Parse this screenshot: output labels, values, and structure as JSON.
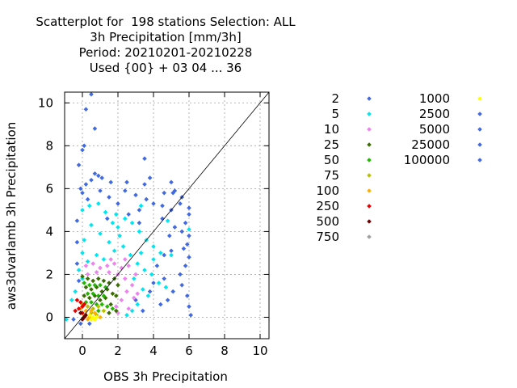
{
  "chart": {
    "title_lines": [
      "Scatterplot for  198 stations Selection: ALL",
      "3h Precipitation [mm/3h]",
      "Period: 20210201-20210228",
      "Used {00} + 03 04 ... 36"
    ],
    "xlabel": "OBS 3h Precipitation",
    "ylabel": "aws3dvarlamb 3h Precipitation"
  },
  "chart_data": {
    "type": "scatter",
    "title": "Scatterplot for  198 stations Selection: ALL / 3h Precipitation [mm/3h] / Period: 20210201-20210228 / Used {00} + 03 04 ... 36",
    "xlabel": "OBS 3h Precipitation",
    "ylabel": "aws3dvarlamb 3h Precipitation",
    "xlim": [
      -1,
      10.5
    ],
    "ylim": [
      -1,
      10.5
    ],
    "xticks": [
      0,
      2,
      4,
      6,
      8,
      10
    ],
    "yticks": [
      0,
      2,
      4,
      6,
      8,
      10
    ],
    "grid": true,
    "diagonal_line": true,
    "legend_position": "right",
    "legend": [
      {
        "label": "2",
        "color": "#4169e1"
      },
      {
        "label": "5",
        "color": "#00e5ee"
      },
      {
        "label": "10",
        "color": "#ee82ee"
      },
      {
        "label": "25",
        "color": "#3a6e00"
      },
      {
        "label": "50",
        "color": "#22b800"
      },
      {
        "label": "75",
        "color": "#b8c000"
      },
      {
        "label": "100",
        "color": "#ffb000"
      },
      {
        "label": "250",
        "color": "#e80000"
      },
      {
        "label": "500",
        "color": "#700000"
      },
      {
        "label": "750",
        "color": "#a0a0a0"
      },
      {
        "label": "1000",
        "color": "#ffff00"
      },
      {
        "label": "2500",
        "color": "#4169e1"
      },
      {
        "label": "5000",
        "color": "#4169e1"
      },
      {
        "label": "25000",
        "color": "#4169e1"
      },
      {
        "label": "100000",
        "color": "#4169e1"
      }
    ],
    "series": [
      {
        "name": "2",
        "color": "#4169e1",
        "points": [
          [
            0.5,
            10.4
          ],
          [
            0.2,
            9.7
          ],
          [
            0.7,
            8.8
          ],
          [
            0,
            7.8
          ],
          [
            0.1,
            8.0
          ],
          [
            -0.2,
            7.1
          ],
          [
            3.5,
            7.4
          ],
          [
            0.7,
            6.7
          ],
          [
            0.9,
            6.6
          ],
          [
            1.1,
            6.5
          ],
          [
            0.5,
            6.4
          ],
          [
            0.2,
            6.2
          ],
          [
            1.6,
            6.3
          ],
          [
            2.5,
            6.3
          ],
          [
            3.5,
            6.2
          ],
          [
            3.8,
            6.5
          ],
          [
            5.0,
            6.3
          ],
          [
            4.6,
            5.8
          ],
          [
            5.1,
            5.8
          ],
          [
            5.6,
            5.6
          ],
          [
            5.2,
            5.9
          ],
          [
            -0.1,
            6.0
          ],
          [
            0,
            5.8
          ],
          [
            0.3,
            5.5
          ],
          [
            1.0,
            5.9
          ],
          [
            2.4,
            5.9
          ],
          [
            3.0,
            5.7
          ],
          [
            3.6,
            5.5
          ],
          [
            4.0,
            5.3
          ],
          [
            4.5,
            5.2
          ],
          [
            5.0,
            5.0
          ],
          [
            5.5,
            5.3
          ],
          [
            6.0,
            5.1
          ],
          [
            6.0,
            4.8
          ],
          [
            5.8,
            4.4
          ],
          [
            5.6,
            4.0
          ],
          [
            6.0,
            3.8
          ],
          [
            5.9,
            3.4
          ],
          [
            5.0,
            3.1
          ],
          [
            5.7,
            3.2
          ],
          [
            6.0,
            2.8
          ],
          [
            5.8,
            2.4
          ],
          [
            5.5,
            2.0
          ],
          [
            5.6,
            1.5
          ],
          [
            6.0,
            0.5
          ],
          [
            5.9,
            1.0
          ],
          [
            6.1,
            0.1
          ],
          [
            5.1,
            1.2
          ],
          [
            4.8,
            0.8
          ],
          [
            4.4,
            0.6
          ],
          [
            4.6,
            1.8
          ],
          [
            4.2,
            2.4
          ],
          [
            4.0,
            1.6
          ],
          [
            3.8,
            1.2
          ],
          [
            3.4,
            0.3
          ],
          [
            3.0,
            0.8
          ],
          [
            4.6,
            2.9
          ],
          [
            4.9,
            3.8
          ],
          [
            5.2,
            4.2
          ],
          [
            4.5,
            4.6
          ],
          [
            3.2,
            4.4
          ],
          [
            2.6,
            4.8
          ],
          [
            1.4,
            4.6
          ],
          [
            -0.3,
            4.5
          ],
          [
            -0.3,
            3.5
          ],
          [
            -0.3,
            2.5
          ],
          [
            -0.2,
            1.7
          ],
          [
            2.0,
            5.3
          ],
          [
            1.5,
            5.6
          ],
          [
            3.2,
            5.0
          ],
          [
            -0.5,
            -0.1
          ],
          [
            -0.1,
            -0.3
          ],
          [
            0.4,
            -0.3
          ]
        ]
      },
      {
        "name": "5",
        "color": "#00e5ee",
        "points": [
          [
            0,
            5.0
          ],
          [
            0.4,
            5.2
          ],
          [
            0.9,
            5.3
          ],
          [
            1.3,
            4.9
          ],
          [
            1.9,
            4.8
          ],
          [
            2.4,
            4.6
          ],
          [
            2.8,
            4.4
          ],
          [
            3.2,
            4.0
          ],
          [
            3.6,
            3.6
          ],
          [
            4.0,
            3.3
          ],
          [
            4.4,
            3.0
          ],
          [
            5.0,
            2.9
          ],
          [
            6.0,
            4.1
          ],
          [
            4.8,
            4.5
          ],
          [
            3.3,
            5.2
          ],
          [
            2.1,
            3.8
          ],
          [
            1.5,
            3.5
          ],
          [
            1.0,
            3.9
          ],
          [
            0.5,
            4.3
          ],
          [
            0.1,
            3.6
          ],
          [
            0,
            3.0
          ],
          [
            0.3,
            2.6
          ],
          [
            0.8,
            2.9
          ],
          [
            1.2,
            2.7
          ],
          [
            1.8,
            3.1
          ],
          [
            2.3,
            3.3
          ],
          [
            2.7,
            2.9
          ],
          [
            3.1,
            2.5
          ],
          [
            3.5,
            2.2
          ],
          [
            3.9,
            2.0
          ],
          [
            4.3,
            1.6
          ],
          [
            4.7,
            1.4
          ],
          [
            3.7,
            1.0
          ],
          [
            3.4,
            1.3
          ],
          [
            3.1,
            0.6
          ],
          [
            2.8,
            0.3
          ],
          [
            2.5,
            0.1
          ],
          [
            2.9,
            1.8
          ],
          [
            3.3,
            3.0
          ],
          [
            -0.2,
            2.2
          ],
          [
            0,
            1.8
          ],
          [
            -0.4,
            1.2
          ],
          [
            -0.6,
            0.8
          ],
          [
            -0.9,
            -0.1
          ],
          [
            4.0,
            2.7
          ],
          [
            2.0,
            4.2
          ],
          [
            1.7,
            4.4
          ]
        ]
      },
      {
        "name": "10",
        "color": "#ee82ee",
        "points": [
          [
            0.2,
            2.4
          ],
          [
            0.6,
            2.5
          ],
          [
            1.0,
            2.3
          ],
          [
            1.4,
            2.4
          ],
          [
            1.8,
            2.5
          ],
          [
            2.2,
            2.3
          ],
          [
            2.6,
            2.4
          ],
          [
            3.0,
            2.0
          ],
          [
            2.4,
            1.8
          ],
          [
            2.0,
            2.0
          ],
          [
            1.5,
            2.1
          ],
          [
            0.8,
            2.1
          ],
          [
            0.3,
            2.0
          ],
          [
            2.8,
            1.5
          ],
          [
            2.5,
            1.2
          ],
          [
            2.2,
            0.8
          ],
          [
            1.9,
            0.5
          ],
          [
            2.6,
            0.4
          ],
          [
            2.0,
            0.2
          ],
          [
            1.6,
            2.7
          ],
          [
            2.4,
            2.7
          ],
          [
            3.1,
            1.1
          ],
          [
            2.9,
            0.9
          ]
        ]
      },
      {
        "name": "25",
        "color": "#3a6e00",
        "points": [
          [
            0,
            1.9
          ],
          [
            0.3,
            1.8
          ],
          [
            0.6,
            1.7
          ],
          [
            0.9,
            1.8
          ],
          [
            1.2,
            1.7
          ],
          [
            1.5,
            1.6
          ],
          [
            1.8,
            1.8
          ],
          [
            2.0,
            1.5
          ],
          [
            0.2,
            1.4
          ],
          [
            0.5,
            1.3
          ],
          [
            0.8,
            1.4
          ],
          [
            1.1,
            1.2
          ],
          [
            1.4,
            1.3
          ],
          [
            1.7,
            1.1
          ],
          [
            0.1,
            1.0
          ],
          [
            0.4,
            0.9
          ],
          [
            0.7,
            1.0
          ],
          [
            1.0,
            0.8
          ],
          [
            1.3,
            0.9
          ],
          [
            1.9,
            1.0
          ],
          [
            1.6,
            0.6
          ],
          [
            1.9,
            0.3
          ],
          [
            1.5,
            0.2
          ]
        ]
      },
      {
        "name": "50",
        "color": "#22b800",
        "points": [
          [
            0.1,
            1.6
          ],
          [
            0.4,
            1.5
          ],
          [
            0.7,
            1.5
          ],
          [
            1.0,
            1.5
          ],
          [
            1.3,
            1.4
          ],
          [
            0.3,
            1.1
          ],
          [
            0.6,
            1.1
          ],
          [
            0.9,
            1.0
          ],
          [
            1.2,
            1.0
          ],
          [
            0.2,
            0.7
          ],
          [
            0.5,
            0.7
          ],
          [
            0.8,
            0.6
          ],
          [
            1.1,
            0.6
          ],
          [
            1.4,
            0.5
          ],
          [
            1.7,
            0.4
          ],
          [
            0.9,
            0.3
          ]
        ]
      },
      {
        "name": "75",
        "color": "#b8c000",
        "points": [
          [
            0,
            0.6
          ],
          [
            0.3,
            0.5
          ],
          [
            0.6,
            0.4
          ],
          [
            0.9,
            0.5
          ],
          [
            0.2,
            0.3
          ],
          [
            0.5,
            0.2
          ],
          [
            1.2,
            0.3
          ],
          [
            0.8,
            0.1
          ]
        ]
      },
      {
        "name": "100",
        "color": "#ffb000",
        "points": [
          [
            -0.1,
            0.4
          ],
          [
            0.2,
            0.3
          ],
          [
            0.5,
            0.3
          ],
          [
            0.1,
            0.1
          ],
          [
            0.4,
            0.0
          ],
          [
            0.7,
            0.2
          ],
          [
            1.0,
            0.0
          ],
          [
            0.3,
            -0.1
          ]
        ]
      },
      {
        "name": "250",
        "color": "#e80000",
        "points": [
          [
            -0.3,
            0.8
          ],
          [
            -0.1,
            0.7
          ],
          [
            0,
            0.5
          ],
          [
            -0.2,
            0.4
          ],
          [
            0.1,
            0.6
          ],
          [
            -0.4,
            0.3
          ],
          [
            0,
            0.2
          ]
        ]
      },
      {
        "name": "500",
        "color": "#700000",
        "points": [
          [
            -0.1,
            0.2
          ],
          [
            0.1,
            0.0
          ],
          [
            0.2,
            0.1
          ],
          [
            0,
            -0.1
          ]
        ]
      },
      {
        "name": "750",
        "color": "#a0a0a0",
        "points": []
      },
      {
        "name": "1000",
        "color": "#ffff00",
        "points": [
          [
            0.6,
            0.0
          ],
          [
            0.8,
            0.0
          ],
          [
            0.4,
            0.1
          ],
          [
            0.5,
            -0.1
          ],
          [
            0.7,
            -0.1
          ]
        ]
      }
    ]
  }
}
